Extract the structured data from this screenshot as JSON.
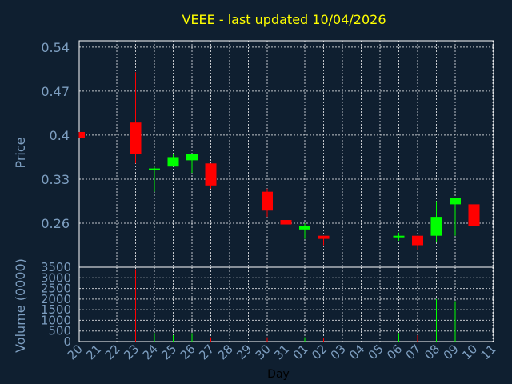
{
  "chart_data": {
    "type": "candlestick",
    "title": "VEEE - last updated 10/04/2026",
    "xlabel": "Day",
    "price_panel": {
      "ylabel": "Price",
      "yticks": [
        "0.54",
        "0.47",
        "0.4",
        "0.33",
        "0.26"
      ],
      "ytick_values": [
        0.54,
        0.47,
        0.4,
        0.33,
        0.26
      ],
      "ylim": [
        0.19,
        0.55
      ]
    },
    "volume_panel": {
      "ylabel": "Volume (0000)",
      "yticks": [
        "3500",
        "3000",
        "2500",
        "2000",
        "1500",
        "1000",
        "500",
        "0"
      ],
      "ytick_values": [
        3500,
        3000,
        2500,
        2000,
        1500,
        1000,
        500,
        0
      ],
      "ylim": [
        0,
        3500
      ]
    },
    "x_ticks": [
      "20",
      "21",
      "22",
      "23",
      "24",
      "25",
      "26",
      "27",
      "28",
      "29",
      "30",
      "31",
      "01",
      "02",
      "03",
      "04",
      "05",
      "06",
      "07",
      "08",
      "09",
      "10",
      "11"
    ],
    "grid": true,
    "colors": {
      "up": "#00ff00",
      "down": "#ff0000",
      "background": "#0f1f30",
      "title": "#ffff00",
      "axis_text": "#7d9ec0",
      "grid": "#ffffff",
      "frame": "#ffffff"
    },
    "candles": [
      {
        "day": "20",
        "open": 0.405,
        "high": 0.405,
        "low": 0.395,
        "close": 0.395,
        "volume": 0
      },
      {
        "day": "23",
        "open": 0.42,
        "high": 0.5,
        "low": 0.355,
        "close": 0.37,
        "volume": 3400
      },
      {
        "day": "24",
        "open": 0.345,
        "high": 0.35,
        "low": 0.31,
        "close": 0.347,
        "volume": 400
      },
      {
        "day": "25",
        "open": 0.35,
        "high": 0.37,
        "low": 0.35,
        "close": 0.365,
        "volume": 300
      },
      {
        "day": "26",
        "open": 0.36,
        "high": 0.37,
        "low": 0.34,
        "close": 0.37,
        "volume": 400
      },
      {
        "day": "27",
        "open": 0.355,
        "high": 0.355,
        "low": 0.315,
        "close": 0.32,
        "volume": 200
      },
      {
        "day": "30",
        "open": 0.31,
        "high": 0.315,
        "low": 0.27,
        "close": 0.28,
        "volume": 200
      },
      {
        "day": "31",
        "open": 0.265,
        "high": 0.27,
        "low": 0.25,
        "close": 0.258,
        "volume": 250
      },
      {
        "day": "01",
        "open": 0.25,
        "high": 0.26,
        "low": 0.235,
        "close": 0.255,
        "volume": 200
      },
      {
        "day": "02",
        "open": 0.24,
        "high": 0.24,
        "low": 0.225,
        "close": 0.235,
        "volume": 150
      },
      {
        "day": "06",
        "open": 0.238,
        "high": 0.245,
        "low": 0.232,
        "close": 0.24,
        "volume": 400
      },
      {
        "day": "07",
        "open": 0.24,
        "high": 0.24,
        "low": 0.218,
        "close": 0.225,
        "volume": 300
      },
      {
        "day": "08",
        "open": 0.24,
        "high": 0.295,
        "low": 0.23,
        "close": 0.27,
        "volume": 2000
      },
      {
        "day": "09",
        "open": 0.29,
        "high": 0.3,
        "low": 0.24,
        "close": 0.3,
        "volume": 1900
      },
      {
        "day": "10",
        "open": 0.29,
        "high": 0.29,
        "low": 0.24,
        "close": 0.255,
        "volume": 400
      }
    ]
  }
}
